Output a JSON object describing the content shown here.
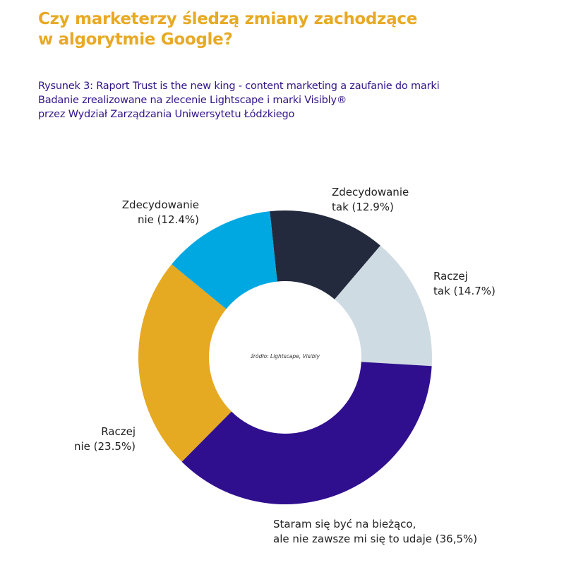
{
  "title": [
    "Czy marketerzy śledzą zmiany zachodzące",
    "w algorytmie Google?"
  ],
  "subtitle": [
    "Rysunek 3: Raport Trust is the new king - content marketing a zaufanie do marki",
    "Badanie zrealizowane na zlecenie Lightscape i  marki Visibly®",
    "przez Wydział Zarządzania Uniwersytetu Łódzkiego"
  ],
  "chart_data": {
    "type": "pie",
    "donut": true,
    "annotation": "źródło: Lightscape, Visibly",
    "slices": [
      {
        "label": [
          "Zdecydowanie",
          "tak (12.9%)"
        ],
        "value": 12.9,
        "color": "#242a3e"
      },
      {
        "label": [
          "Raczej",
          "tak (14.7%)"
        ],
        "value": 14.7,
        "color": "#cfdbe3"
      },
      {
        "label": [
          "Staram się być na bieżąco,",
          "ale nie zawsze mi się to udaje (36,5%)"
        ],
        "value": 36.5,
        "color": "#300f8f"
      },
      {
        "label": [
          "Raczej",
          "nie (23.5%)"
        ],
        "value": 23.5,
        "color": "#e6a922"
      },
      {
        "label": [
          "Zdecydowanie",
          "nie (12.4%)"
        ],
        "value": 12.4,
        "color": "#00a8e2"
      }
    ]
  }
}
